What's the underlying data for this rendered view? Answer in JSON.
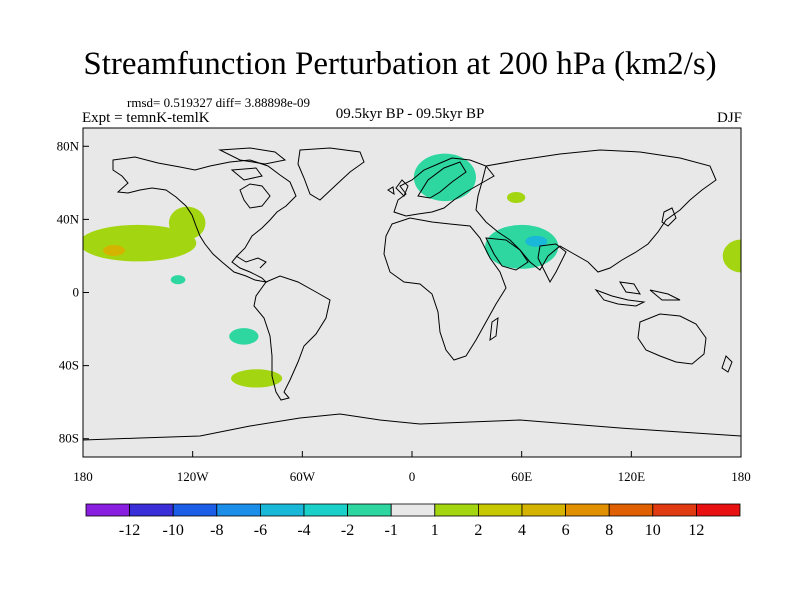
{
  "header": {
    "title": "Streamfunction Perturbation at 200 hPa (km2/s)",
    "stats": "rmsd= 0.519327 diff= 3.88898e-09",
    "left_label": "Expt = temnK-temlK",
    "center_label": "09.5kyr BP - 09.5kyr BP",
    "right_label": "DJF"
  },
  "map": {
    "background_color": "#e8e8e8",
    "lon_range": [
      -180,
      180
    ],
    "lat_range": [
      -90,
      90
    ],
    "lat_ticks": [
      {
        "value": 80,
        "label": "80N"
      },
      {
        "value": 40,
        "label": "40N"
      },
      {
        "value": 0,
        "label": "0"
      },
      {
        "value": -40,
        "label": "40S"
      },
      {
        "value": -80,
        "label": "80S"
      }
    ],
    "lon_ticks": [
      {
        "value": -180,
        "label": "180"
      },
      {
        "value": -120,
        "label": "120W"
      },
      {
        "value": -60,
        "label": "60W"
      },
      {
        "value": 0,
        "label": "0"
      },
      {
        "value": 60,
        "label": "60E"
      },
      {
        "value": 120,
        "label": "120E"
      },
      {
        "value": 180,
        "label": "180"
      }
    ],
    "anomalies": [
      {
        "name": "north-pacific-positive",
        "lon": -150,
        "lat": 27,
        "rlon": 32,
        "rlat": 10,
        "color": "#a3d611"
      },
      {
        "name": "north-america-west-positive",
        "lon": -123,
        "lat": 38,
        "rlon": 10,
        "rlat": 9,
        "color": "#a3d611"
      },
      {
        "name": "north-pacific-core",
        "lon": -163,
        "lat": 23,
        "rlon": 6,
        "rlat": 3,
        "color": "#d4b400"
      },
      {
        "name": "tropical-pacific-negative",
        "lon": -128,
        "lat": 7,
        "rlon": 4,
        "rlat": 2.5,
        "color": "#2ed6a0"
      },
      {
        "name": "south-pacific-negative",
        "lon": -92,
        "lat": -24,
        "rlon": 8,
        "rlat": 4.5,
        "color": "#2ed6a0"
      },
      {
        "name": "south-america-positive",
        "lon": -85,
        "lat": -47,
        "rlon": 14,
        "rlat": 5,
        "color": "#a3d611"
      },
      {
        "name": "scandinavia-negative",
        "lon": 18,
        "lat": 63,
        "rlon": 17,
        "rlat": 13,
        "color": "#2ed6a0"
      },
      {
        "name": "caspian-positive",
        "lon": 57,
        "lat": 52,
        "rlon": 5,
        "rlat": 3,
        "color": "#a3d611"
      },
      {
        "name": "arabia-negative",
        "lon": 60,
        "lat": 25,
        "rlon": 20,
        "rlat": 12,
        "color": "#2ed6a0"
      },
      {
        "name": "arabia-core",
        "lon": 68,
        "lat": 28,
        "rlon": 6,
        "rlat": 3,
        "color": "#1ab8d8"
      },
      {
        "name": "west-pacific-positive",
        "lon": 180,
        "lat": 20,
        "rlon": 10,
        "rlat": 9,
        "color": "#a3d611"
      }
    ]
  },
  "colorbar": {
    "colors": [
      "#8a1ee0",
      "#3a2ed8",
      "#1a5ee8",
      "#1a8ee8",
      "#1ab8d8",
      "#1ad0c8",
      "#2ed6a0",
      "#e8e8e8",
      "#a3d611",
      "#c8c800",
      "#d4b400",
      "#e09000",
      "#e06000",
      "#e03a10",
      "#e81010"
    ],
    "labels": [
      "-12",
      "-10",
      "-8",
      "-6",
      "-4",
      "-2",
      "-1",
      "1",
      "2",
      "4",
      "6",
      "8",
      "10",
      "12"
    ]
  }
}
